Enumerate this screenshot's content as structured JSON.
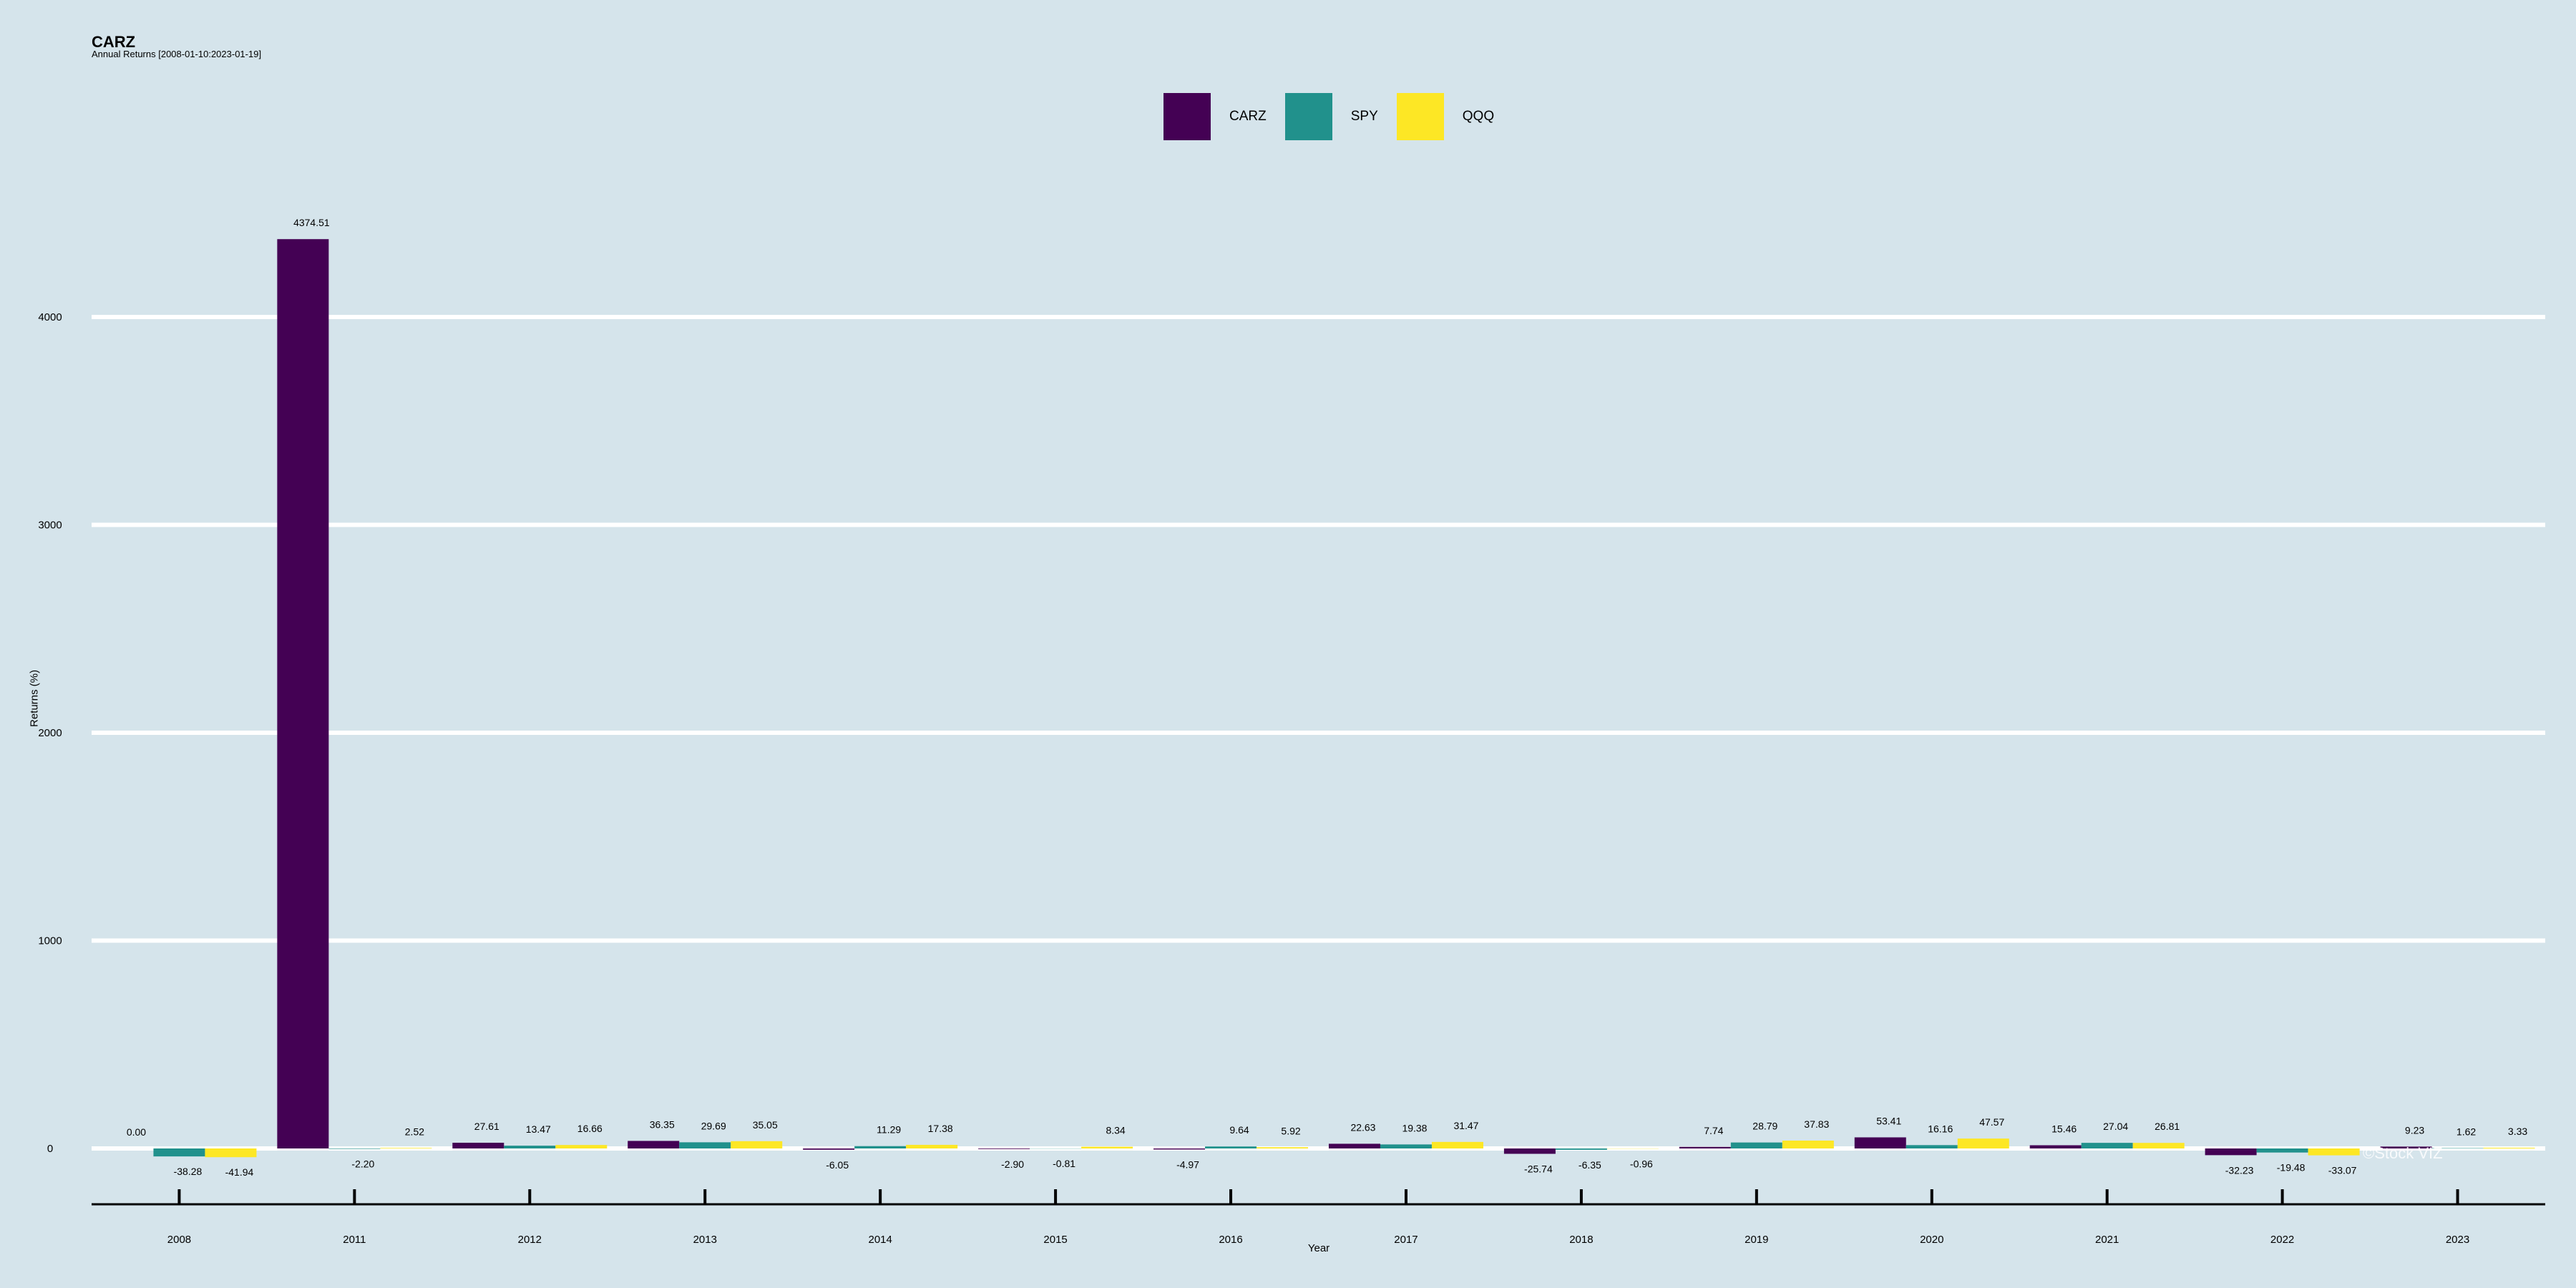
{
  "chart_data": {
    "type": "bar",
    "title": "CARZ",
    "subtitle": "Annual Returns [2008-01-10:2023-01-19]",
    "xlabel": "Year",
    "ylabel": "Returns (%)",
    "categories": [
      "2008",
      "2011",
      "2012",
      "2013",
      "2014",
      "2015",
      "2016",
      "2017",
      "2018",
      "2019",
      "2020",
      "2021",
      "2022",
      "2023"
    ],
    "series": [
      {
        "name": "CARZ",
        "color": "#440154",
        "values": [
          0.0,
          4374.51,
          27.61,
          36.35,
          -6.05,
          -2.9,
          -4.97,
          22.63,
          -25.74,
          7.74,
          53.41,
          15.46,
          -32.23,
          9.23
        ]
      },
      {
        "name": "SPY",
        "color": "#21918c",
        "values": [
          -38.28,
          -2.2,
          13.47,
          29.69,
          11.29,
          -0.81,
          9.64,
          19.38,
          -6.35,
          28.79,
          16.16,
          27.04,
          -19.48,
          1.62
        ]
      },
      {
        "name": "QQQ",
        "color": "#fde725",
        "values": [
          -41.94,
          2.52,
          16.66,
          35.05,
          17.38,
          8.34,
          5.92,
          31.47,
          -0.96,
          37.83,
          47.57,
          26.81,
          -33.07,
          3.33
        ]
      }
    ],
    "data_labels": [
      [
        "0.00",
        "4374.51",
        "27.61",
        "36.35",
        "-6.05",
        "-2.90",
        "-4.97",
        "22.63",
        "-25.74",
        "7.74",
        "53.41",
        "15.46",
        "-32.23",
        "9.23"
      ],
      [
        "-38.28",
        "-2.20",
        "13.47",
        "29.69",
        "11.29",
        "-0.81",
        "9.64",
        "19.38",
        "-6.35",
        "28.79",
        "16.16",
        "27.04",
        "-19.48",
        "1.62"
      ],
      [
        "-41.94",
        "2.52",
        "16.66",
        "35.05",
        "17.38",
        "8.34",
        "5.92",
        "31.47",
        "-0.96",
        "37.83",
        "47.57",
        "26.81",
        "-33.07",
        "3.33"
      ]
    ],
    "yticks": [
      0,
      1000,
      2000,
      3000,
      4000
    ],
    "ylim": [
      -270,
      4650
    ],
    "grid": true,
    "legend_position": "top-center",
    "watermark": "©Stock VIZ"
  }
}
